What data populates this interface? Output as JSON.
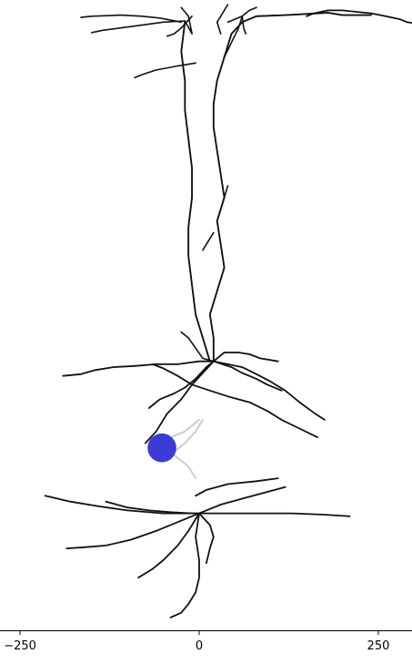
{
  "chart_data": {
    "type": "line",
    "title": "",
    "xlabel": "",
    "ylabel": "",
    "xlim": [
      -278,
      297
    ],
    "ylim": [
      -260,
      810
    ],
    "x_ticks": [
      {
        "value": -250,
        "label": "−250"
      },
      {
        "value": 0,
        "label": "0"
      },
      {
        "value": 250,
        "label": "250"
      }
    ],
    "grid": false,
    "axes_visible": [
      "bottom"
    ],
    "colors": {
      "dendrite": "#111111",
      "soma_light": "#cccccc",
      "electrode": "#3b3bd6",
      "axis": "#000000"
    },
    "electrode": {
      "x": -52,
      "y": 52,
      "radius": 20
    },
    "series": [
      {
        "name": "",
        "color": "#111111",
        "x": [
          20,
          20,
          15,
          25,
          35,
          30,
          25,
          35,
          30,
          25,
          20,
          20,
          25,
          35,
          45,
          60,
          80,
          120,
          150,
          180,
          200,
          240
        ],
        "y": [
          200,
          240,
          280,
          320,
          360,
          400,
          440,
          480,
          520,
          560,
          600,
          640,
          680,
          720,
          760,
          780,
          790,
          792,
          794,
          796,
          792,
          792
        ]
      },
      {
        "name": "",
        "color": "#111111",
        "x": [
          15,
          5,
          -5,
          -10,
          -15,
          -15,
          -10,
          -10,
          -15,
          -20,
          -20,
          -25,
          -20
        ],
        "y": [
          200,
          240,
          280,
          330,
          380,
          430,
          480,
          530,
          580,
          630,
          680,
          730,
          780
        ]
      },
      {
        "name": "",
        "color": "#111111",
        "x": [
          20,
          0,
          -30,
          -60,
          -90,
          -120,
          -145,
          -165,
          -190
        ],
        "y": [
          200,
          200,
          195,
          195,
          192,
          190,
          185,
          178,
          175
        ]
      },
      {
        "name": "",
        "color": "#111111",
        "x": [
          20,
          40,
          60,
          80,
          100,
          120,
          140,
          160,
          175
        ],
        "y": [
          200,
          195,
          190,
          178,
          165,
          150,
          130,
          112,
          100
        ]
      },
      {
        "name": "",
        "color": "#111111",
        "x": [
          20,
          35,
          55,
          70,
          85,
          110
        ],
        "y": [
          200,
          215,
          215,
          212,
          205,
          200
        ]
      },
      {
        "name": "",
        "color": "#111111",
        "x": [
          20,
          5,
          -10,
          -25,
          -45,
          -60,
          -75
        ],
        "y": [
          200,
          180,
          160,
          135,
          110,
          80,
          60
        ]
      },
      {
        "name": "",
        "color": "#111111",
        "x": [
          15,
          40,
          70,
          95,
          115,
          140,
          165
        ],
        "y": [
          150,
          140,
          130,
          115,
          100,
          85,
          70
        ]
      },
      {
        "name": "",
        "color": "#111111",
        "x": [
          15,
          -10,
          -30,
          -50,
          -65
        ],
        "y": [
          150,
          160,
          175,
          188,
          195
        ]
      },
      {
        "name": "",
        "color": "#111111",
        "x": [
          20,
          10,
          -5,
          -20,
          -35,
          -55,
          -70
        ],
        "y": [
          200,
          190,
          170,
          155,
          145,
          135,
          120
        ]
      },
      {
        "name": "",
        "color": "#111111",
        "x": [
          20,
          45,
          60,
          80,
          95,
          115
        ],
        "y": [
          200,
          190,
          180,
          170,
          160,
          150
        ]
      },
      {
        "name": "",
        "color": "#111111",
        "x": [
          0,
          -50,
          -100,
          -140,
          -180,
          -215
        ],
        "y": [
          -60,
          -60,
          -55,
          -48,
          -40,
          -30
        ]
      },
      {
        "name": "",
        "color": "#111111",
        "x": [
          0,
          40,
          90,
          130,
          170,
          210
        ],
        "y": [
          -60,
          -60,
          -60,
          -60,
          -62,
          -65
        ]
      },
      {
        "name": "",
        "color": "#111111",
        "x": [
          0,
          -30,
          -60,
          -95,
          -130,
          -160,
          -185
        ],
        "y": [
          -60,
          -75,
          -90,
          -105,
          -115,
          -118,
          -120
        ]
      },
      {
        "name": "",
        "color": "#111111",
        "x": [
          0,
          -15,
          -30,
          -50,
          -65,
          -85
        ],
        "y": [
          -60,
          -90,
          -115,
          -140,
          -155,
          -170
        ]
      },
      {
        "name": "",
        "color": "#111111",
        "x": [
          0,
          -5,
          0,
          0,
          -5,
          -15,
          -25,
          -40
        ],
        "y": [
          -60,
          -100,
          -140,
          -170,
          -195,
          -215,
          -230,
          -238
        ]
      },
      {
        "name": "",
        "color": "#111111",
        "x": [
          0,
          15,
          20,
          15,
          10
        ],
        "y": [
          -60,
          -80,
          -100,
          -120,
          -145
        ]
      },
      {
        "name": "",
        "color": "#111111",
        "x": [
          0,
          30,
          60,
          90,
          120
        ],
        "y": [
          -60,
          -45,
          -35,
          -25,
          -15
        ]
      },
      {
        "name": "",
        "color": "#111111",
        "x": [
          -130,
          -100,
          -70,
          -40,
          -10,
          0
        ],
        "y": [
          -40,
          -50,
          -55,
          -58,
          -60,
          -60
        ]
      },
      {
        "name": "",
        "color": "#111111",
        "x": [
          -5,
          10,
          40,
          80,
          110
        ],
        "y": [
          -30,
          -20,
          -10,
          -5,
          0
        ]
      },
      {
        "name": "",
        "color": "#111111",
        "x": [
          150,
          160,
          180,
          200,
          240,
          260,
          280,
          290,
          300,
          305
        ],
        "y": [
          790,
          795,
          800,
          800,
          795,
          790,
          785,
          780,
          778,
          776
        ]
      }
    ],
    "dendrite_segments": [
      {
        "x": [
          20,
          20,
          15,
          25,
          35,
          30,
          25,
          35,
          30,
          25,
          20,
          20,
          25,
          35,
          45,
          60,
          80,
          120,
          150,
          180,
          200,
          240
        ],
        "y": [
          200,
          240,
          280,
          320,
          360,
          400,
          440,
          480,
          520,
          560,
          600,
          640,
          680,
          720,
          760,
          780,
          790,
          792,
          794,
          796,
          792,
          792
        ]
      },
      {
        "x": [
          15,
          5,
          -5,
          -10,
          -15,
          -15,
          -10,
          -10,
          -15,
          -20,
          -20,
          -25,
          -20
        ],
        "y": [
          200,
          240,
          280,
          330,
          380,
          430,
          480,
          530,
          580,
          630,
          680,
          730,
          780
        ]
      },
      {
        "x": [
          -25,
          -55,
          -80,
          -110,
          -150,
          -165
        ],
        "y": [
          780,
          787,
          790,
          792,
          790,
          788
        ]
      },
      {
        "x": [
          -20,
          -50,
          -85,
          -110,
          -135,
          -150
        ],
        "y": [
          782,
          780,
          774,
          770,
          766,
          762
        ]
      },
      {
        "x": [
          -20,
          -10,
          -15,
          -25
        ],
        "y": [
          782,
          760,
          790,
          805
        ]
      },
      {
        "x": [
          -10,
          -25,
          -35,
          -45
        ],
        "y": [
          790,
          770,
          760,
          756
        ]
      },
      {
        "x": [
          35,
          45,
          55,
          60,
          70,
          80
        ],
        "y": [
          720,
          745,
          770,
          790,
          800,
          805
        ]
      },
      {
        "x": [
          30,
          25,
          35,
          40
        ],
        "y": [
          760,
          780,
          800,
          810
        ]
      },
      {
        "x": [
          40,
          60,
          62,
          65
        ],
        "y": [
          780,
          790,
          770,
          760
        ]
      },
      {
        "x": [
          -5,
          -30,
          -60,
          -80,
          -90
        ],
        "y": [
          710,
          705,
          698,
          690,
          685
        ]
      },
      {
        "x": [
          20,
          10,
          5
        ],
        "y": [
          420,
          400,
          390
        ]
      },
      {
        "x": [
          25,
          30,
          35,
          40
        ],
        "y": [
          440,
          460,
          480,
          500
        ]
      },
      {
        "x": [
          20,
          5,
          -15,
          -25
        ],
        "y": [
          200,
          205,
          240,
          250
        ]
      }
    ]
  }
}
